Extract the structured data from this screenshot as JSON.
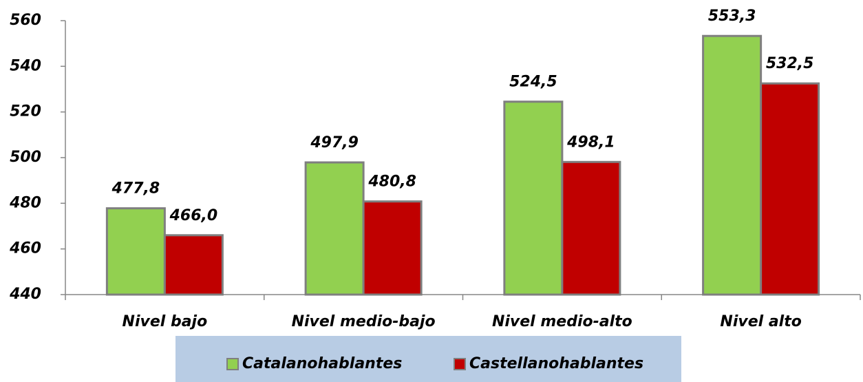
{
  "chart_data": {
    "type": "bar",
    "categories": [
      "Nivel bajo",
      "Nivel medio-bajo",
      "Nivel medio-alto",
      "Nivel alto"
    ],
    "series": [
      {
        "name": "Catalanohablantes",
        "color": "#92d050",
        "values": [
          477.8,
          497.9,
          524.5,
          553.3
        ],
        "value_labels": [
          "477,8",
          "497,9",
          "524,5",
          "553,3"
        ]
      },
      {
        "name": "Castellanohablantes",
        "color": "#c00000",
        "values": [
          466.0,
          480.8,
          498.1,
          532.5
        ],
        "value_labels": [
          "466,0",
          "480,8",
          "498,1",
          "532,5"
        ]
      }
    ],
    "ylim": [
      440,
      560
    ],
    "yticks": [
      440,
      460,
      480,
      500,
      520,
      540,
      560
    ],
    "legend": "bottom",
    "legend_background": "#b8cce4"
  }
}
